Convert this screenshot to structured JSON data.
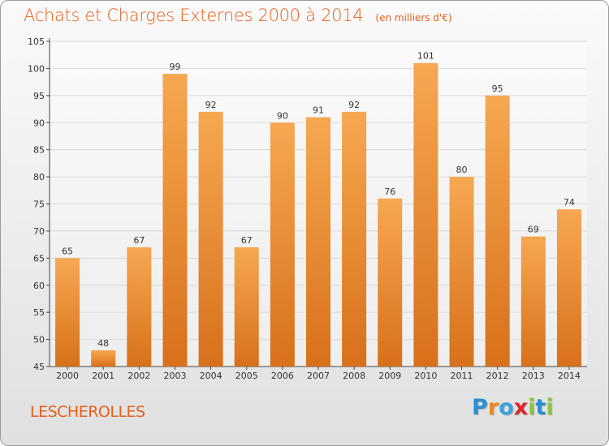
{
  "title": "Achats et Charges Externes 2000 à 2014",
  "subtitle": "(en milliers d'€)",
  "commune": "LESCHEROLLES",
  "logo": {
    "letters": [
      "P",
      "r",
      "o",
      "x",
      "i",
      "t",
      "i"
    ],
    "colors": [
      "#2a8fd6",
      "#f08a1c",
      "#3aa3e0",
      "#e0262a",
      "#8cc63f",
      "#2a8fd6",
      "#8cc63f"
    ]
  },
  "colors": {
    "bar_top": "#f6a851",
    "bar_bottom": "#d8701a",
    "title": "#e8601c",
    "grid": "#d9d9d9"
  },
  "chart_data": {
    "type": "bar",
    "categories": [
      "2000",
      "2001",
      "2002",
      "2003",
      "2004",
      "2005",
      "2006",
      "2007",
      "2008",
      "2009",
      "2010",
      "2011",
      "2012",
      "2013",
      "2014"
    ],
    "values": [
      65,
      48,
      67,
      99,
      92,
      67,
      90,
      91,
      92,
      76,
      101,
      80,
      95,
      69,
      74
    ],
    "data_labels": [
      "65",
      "48",
      "67",
      "99",
      "92",
      "67",
      "90",
      "91",
      "92",
      "76",
      "101",
      "80",
      "95",
      "69",
      "74"
    ],
    "yticks": [
      "45",
      "50",
      "55",
      "60",
      "65",
      "70",
      "75",
      "80",
      "85",
      "90",
      "95",
      "100",
      "105"
    ],
    "ylim": [
      45,
      105
    ],
    "grid": true
  }
}
